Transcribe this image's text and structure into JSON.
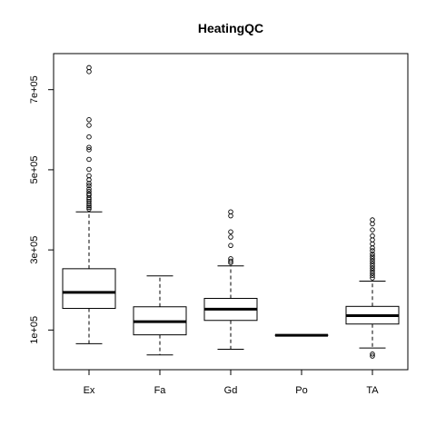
{
  "chart_data": {
    "type": "box",
    "title": "HeatingQC",
    "xlabel": "",
    "ylabel": "",
    "categories": [
      "Ex",
      "Fa",
      "Gd",
      "Po",
      "TA"
    ],
    "ylim": [
      1000,
      790000
    ],
    "yticks": [
      100000,
      300000,
      500000,
      700000
    ],
    "ytick_labels": [
      "1e+05",
      "3e+05",
      "5e+05",
      "7e+05"
    ],
    "grid": false,
    "boxes": [
      {
        "category": "Ex",
        "whisker_low": 66000,
        "q1": 154000,
        "median": 194000,
        "q3": 253000,
        "whisker_high": 395000,
        "outliers": [
          755000,
          745000,
          625000,
          611000,
          582000,
          556000,
          550000,
          526000,
          501000,
          485000,
          475000,
          466000,
          460000,
          452000,
          446000,
          440000,
          437000,
          430000,
          426000,
          421000,
          415000,
          410000,
          406000,
          402000
        ]
      },
      {
        "category": "Fa",
        "whisker_low": 37900,
        "q1": 88000,
        "median": 121000,
        "q3": 158000,
        "whisker_high": 235000,
        "outliers": []
      },
      {
        "category": "Gd",
        "whisker_low": 52000,
        "q1": 124000,
        "median": 152000,
        "q3": 179000,
        "whisker_high": 260000,
        "outliers": [
          395000,
          385000,
          345000,
          332000,
          311000,
          278000,
          272000,
          268000
        ]
      },
      {
        "category": "Po",
        "whisker_low": 87000,
        "q1": 87000,
        "median": 87000,
        "q3": 87000,
        "whisker_high": 87000,
        "outliers": []
      },
      {
        "category": "TA",
        "whisker_low": 55000,
        "q1": 115000,
        "median": 136000,
        "q3": 159000,
        "whisker_high": 222000,
        "outliers": [
          375000,
          365000,
          350000,
          335000,
          325000,
          315000,
          305000,
          298000,
          290000,
          284000,
          278000,
          272000,
          266000,
          260000,
          254000,
          248000,
          242000,
          236000,
          230000,
          40000,
          35000
        ]
      }
    ]
  },
  "colors": {
    "stroke": "#000000",
    "background": "#ffffff"
  }
}
